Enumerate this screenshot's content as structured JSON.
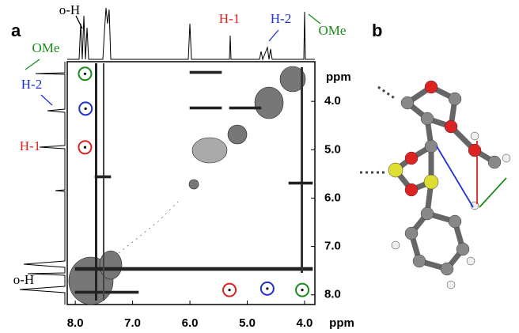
{
  "chart_data": {
    "type": "nmr2d",
    "panel_labels": [
      "a",
      "b"
    ],
    "xlabel": "ppm",
    "ylabel": "ppm",
    "xlim": [
      8.14,
      3.82
    ],
    "xticks": [
      {
        "value": 8,
        "label": "8.0"
      },
      {
        "value": 7,
        "label": "7.0"
      },
      {
        "value": 6,
        "label": "6.0"
      },
      {
        "value": 5,
        "label": "5.0"
      },
      {
        "value": 4,
        "label": "4.0"
      }
    ],
    "ylim": [
      3.18,
      8.2
    ],
    "yticks": [
      {
        "value": 4,
        "label": "4.0"
      },
      {
        "value": 5,
        "label": "5.0"
      },
      {
        "value": 6,
        "label": "6.0"
      },
      {
        "value": 7,
        "label": "7.0"
      },
      {
        "value": 8,
        "label": "8.0"
      }
    ],
    "top_annotations": [
      {
        "text": "o-H",
        "color": "#000000"
      },
      {
        "text": "H-1",
        "color": "#e02020"
      },
      {
        "text": "H-2",
        "color": "#2030d0"
      },
      {
        "text": "OMe",
        "color": "#1a8a1a"
      }
    ],
    "left_annotations": [
      {
        "text": "OMe",
        "color": "#1a8a1a"
      },
      {
        "text": "H-2",
        "color": "#2030d0"
      },
      {
        "text": "H-1",
        "color": "#e02020"
      },
      {
        "text": "o-H",
        "color": "#000000"
      }
    ],
    "cross_peaks": [
      {
        "x": 7.83,
        "y": 3.43,
        "color": "#1a8a1a"
      },
      {
        "x": 7.82,
        "y": 4.15,
        "color": "#2030d0"
      },
      {
        "x": 7.83,
        "y": 4.95,
        "color": "#e02020"
      },
      {
        "x": 5.31,
        "y": 7.9,
        "color": "#e02020"
      },
      {
        "x": 4.65,
        "y": 7.87,
        "color": "#2030d0"
      },
      {
        "x": 4.04,
        "y": 7.9,
        "color": "#1a8a1a"
      }
    ]
  }
}
